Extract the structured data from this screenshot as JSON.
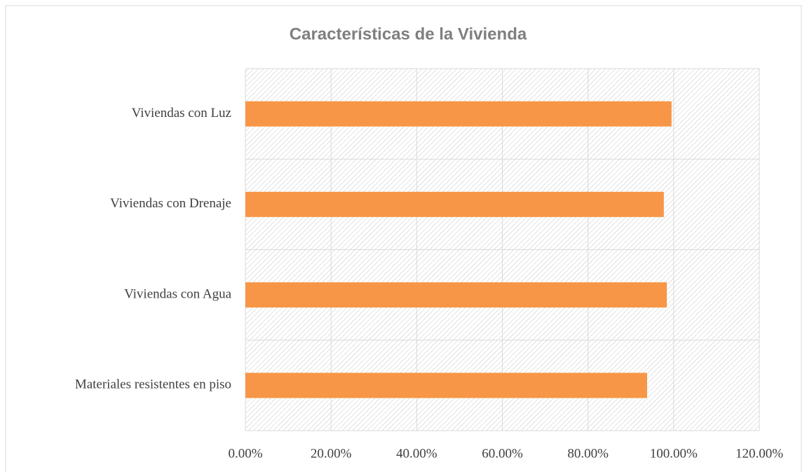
{
  "chart_data": {
    "type": "bar",
    "orientation": "horizontal",
    "title": "Características de la Vivienda",
    "categories": [
      "Viviendas con Luz",
      "Viviendas con Drenaje",
      "Viviendas con Agua",
      "Materiales resistentes en piso"
    ],
    "values": [
      99.5,
      97.7,
      98.4,
      93.8
    ],
    "color": "#f79646",
    "xlim": [
      0,
      120
    ],
    "xticks": [
      {
        "value": 0,
        "label": "0.00%"
      },
      {
        "value": 20,
        "label": "20.00%"
      },
      {
        "value": 40,
        "label": "40.00%"
      },
      {
        "value": 60,
        "label": "60.00%"
      },
      {
        "value": 80,
        "label": "80.00%"
      },
      {
        "value": 100,
        "label": "100.00%"
      },
      {
        "value": 120,
        "label": "120.00%"
      }
    ],
    "grid": true
  }
}
